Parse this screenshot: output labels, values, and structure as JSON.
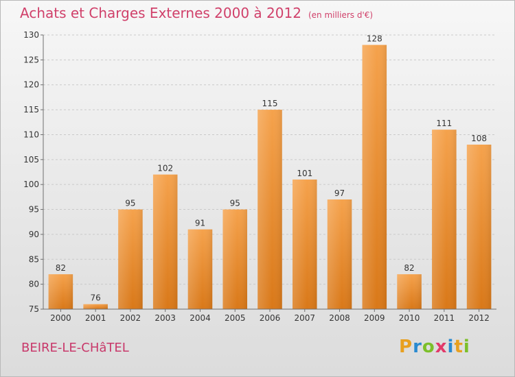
{
  "header": {
    "title": "Achats et Charges Externes 2000 à 2012",
    "unit": "(en milliers d'€)"
  },
  "footer": {
    "town": "BEIRE-LE-CHâTEL",
    "logo": {
      "letters": [
        "P",
        "r",
        "o",
        "x",
        "i",
        "t",
        "i"
      ],
      "colors": [
        "#e8a020",
        "#2a8ad0",
        "#7cbf2a",
        "#e23a6a",
        "#2a8ad0",
        "#e8a020",
        "#7cbf2a"
      ]
    }
  },
  "colors": {
    "bar_top": "#f5a24c",
    "bar_bottom": "#d97818",
    "axis": "#6e6e6e",
    "grid": "#c9c9c9",
    "text": "#333333"
  },
  "chart_data": {
    "type": "bar",
    "title": "Achats et Charges Externes 2000 à 2012",
    "categories": [
      "2000",
      "2001",
      "2002",
      "2003",
      "2004",
      "2005",
      "2006",
      "2007",
      "2008",
      "2009",
      "2010",
      "2011",
      "2012"
    ],
    "values": [
      82,
      76,
      95,
      102,
      91,
      95,
      115,
      101,
      97,
      128,
      82,
      111,
      108
    ],
    "xlabel": "",
    "ylabel": "",
    "ylim": [
      75,
      130
    ],
    "yticks": [
      75,
      80,
      85,
      90,
      95,
      100,
      105,
      110,
      115,
      120,
      125,
      130
    ],
    "grid": true,
    "legend": "none"
  }
}
